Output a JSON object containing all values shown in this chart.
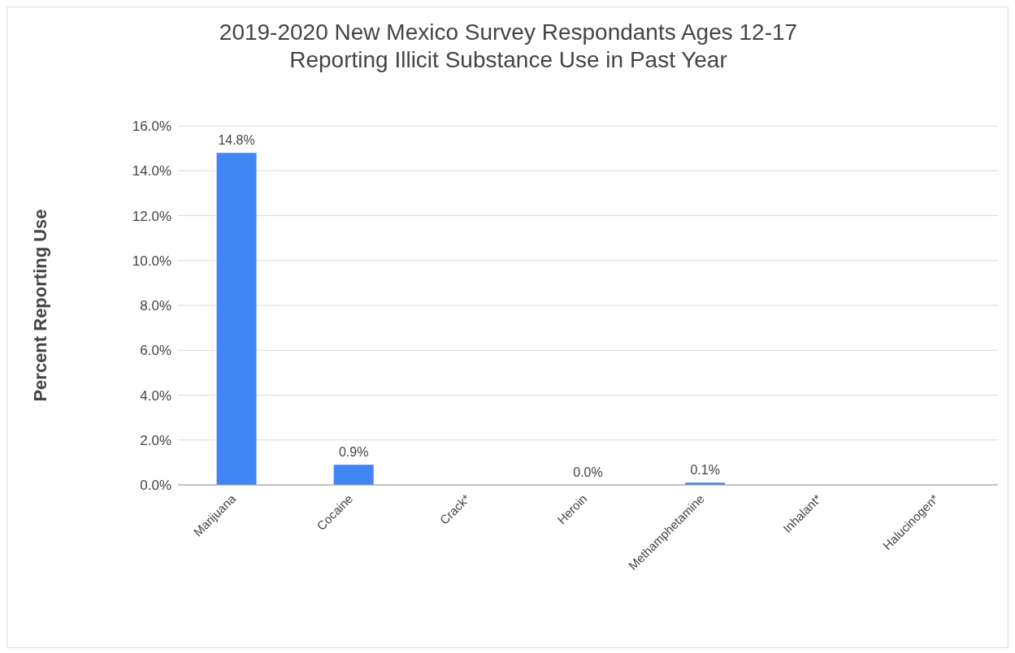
{
  "chart_data": {
    "type": "bar",
    "title": "2019-2020 New Mexico Survey Respondants Ages 12-17\nReporting Illicit Substance Use in Past Year",
    "ylabel": "Percent Reporting Use",
    "categories": [
      "Marijuana",
      "Cocaine",
      "Crack*",
      "Heroin",
      "Methamphetamine",
      "Inhalant*",
      "Halucinogen*"
    ],
    "values": [
      14.8,
      0.9,
      null,
      0.0,
      0.1,
      null,
      null
    ],
    "value_labels": [
      "14.8%",
      "0.9%",
      null,
      "0.0%",
      "0.1%",
      null,
      null
    ],
    "color": "#4285f4",
    "ylim": [
      0,
      16
    ],
    "yticks": [
      {
        "value": 0,
        "label": "0.0%"
      },
      {
        "value": 2,
        "label": "2.0%"
      },
      {
        "value": 4,
        "label": "4.0%"
      },
      {
        "value": 6,
        "label": "6.0%"
      },
      {
        "value": 8,
        "label": "8.0%"
      },
      {
        "value": 10,
        "label": "10.0%"
      },
      {
        "value": 12,
        "label": "12.0%"
      },
      {
        "value": 14,
        "label": "14.0%"
      },
      {
        "value": 16,
        "label": "16.0%"
      }
    ],
    "grid": "y",
    "legend": false
  }
}
